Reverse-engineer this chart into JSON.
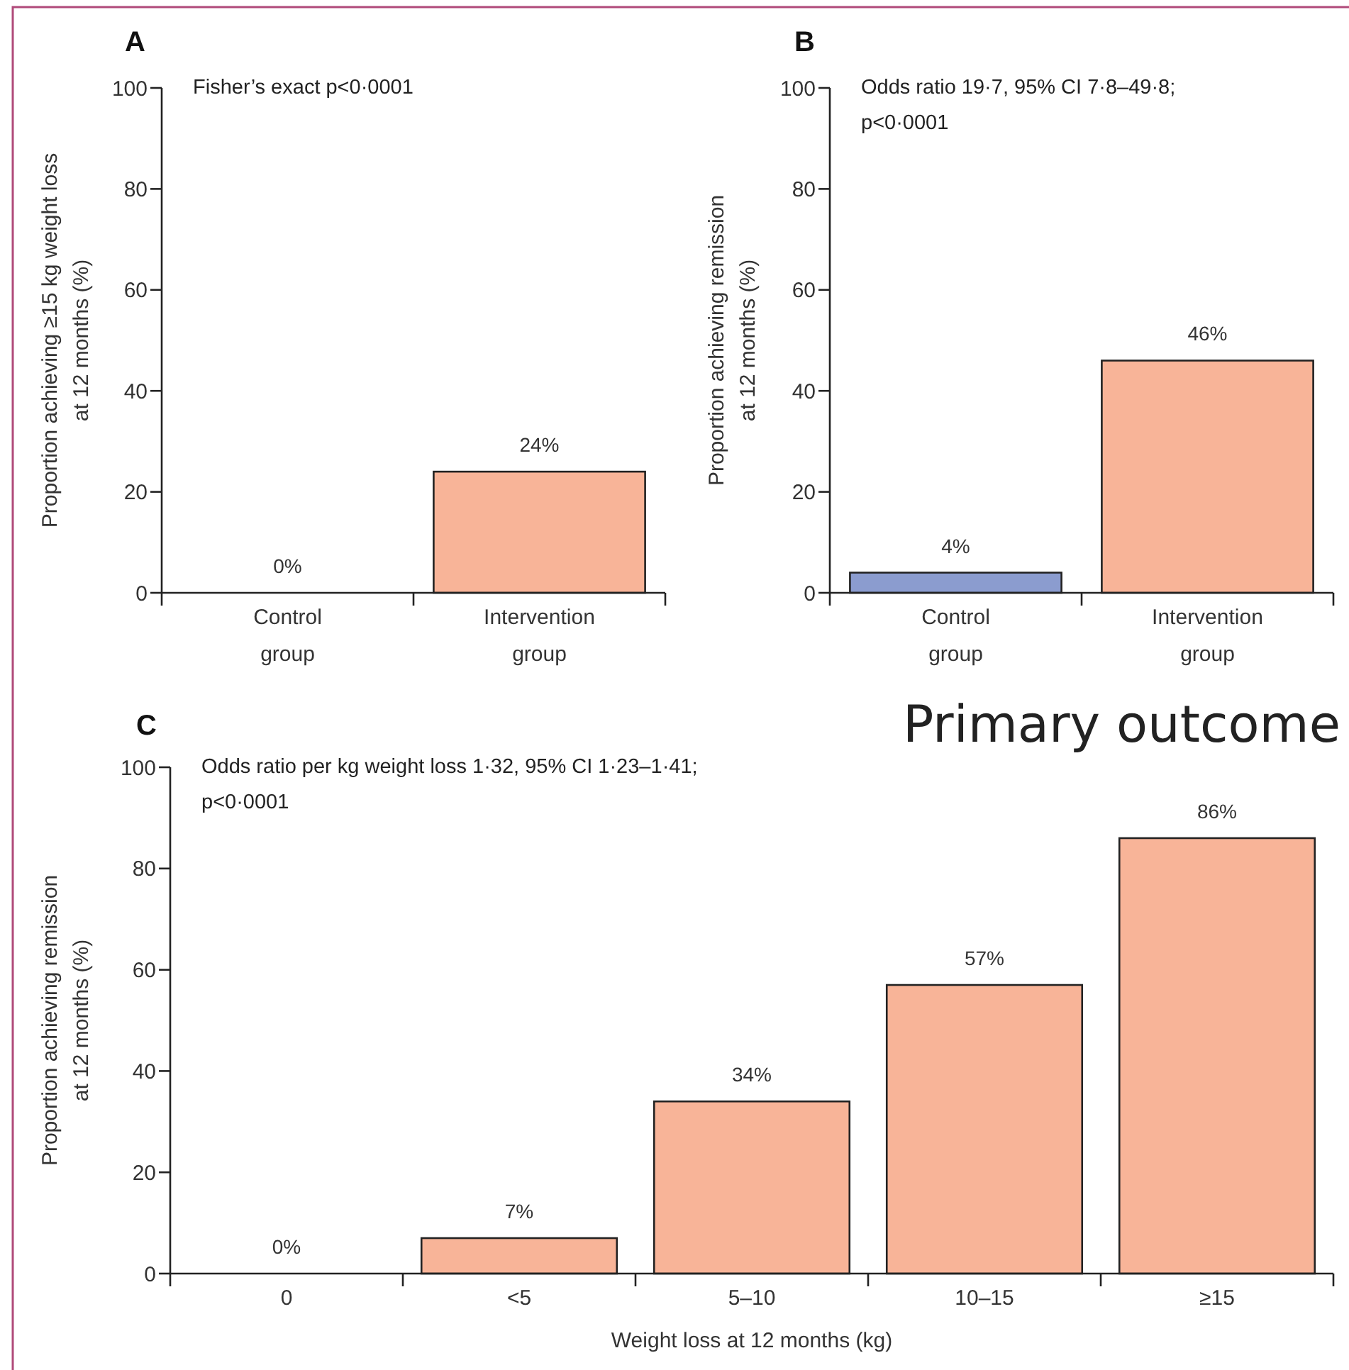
{
  "chart_data": [
    {
      "type": "bar",
      "title": "A",
      "annotations": [
        "Fisher’s exact p<0·0001"
      ],
      "ylabel": "Proportion achieving ≥15 kg weight loss\nat 12 months (%)",
      "categories": [
        "Control\ngroup",
        "Intervention\ngroup"
      ],
      "values": [
        0,
        24
      ],
      "colors": [
        "#f8b498",
        "#f8b498"
      ],
      "value_labels": [
        "0%",
        "24%"
      ],
      "ylim": [
        0,
        100
      ],
      "yticks": [
        0,
        20,
        40,
        60,
        80,
        100
      ],
      "grid": false
    },
    {
      "type": "bar",
      "title": "B",
      "annotations": [
        "Odds ratio 19·7, 95% CI 7·8–49·8;\np<0·0001"
      ],
      "ylabel": "Proportion achieving remission\nat 12 months (%)",
      "categories": [
        "Control\ngroup",
        "Intervention\ngroup"
      ],
      "values": [
        4,
        46
      ],
      "colors": [
        "#8b9ccf",
        "#f8b498"
      ],
      "value_labels": [
        "4%",
        "46%"
      ],
      "ylim": [
        0,
        100
      ],
      "yticks": [
        0,
        20,
        40,
        60,
        80,
        100
      ],
      "grid": false
    },
    {
      "type": "bar",
      "title": "C",
      "annotations": [
        "Odds ratio per kg weight loss 1·32, 95% CI 1·23–1·41;\np<0·0001",
        "Primary outcome"
      ],
      "ylabel": "Proportion achieving remission\nat 12 months (%)",
      "xlabel": "Weight loss at 12 months (kg)",
      "categories": [
        "0",
        "<5",
        "5–10",
        "10–15",
        "≥15"
      ],
      "values": [
        0,
        7,
        34,
        57,
        86
      ],
      "colors": [
        "#f8b498",
        "#f8b498",
        "#f8b498",
        "#f8b498",
        "#f8b498"
      ],
      "value_labels": [
        "0%",
        "7%",
        "34%",
        "57%",
        "86%"
      ],
      "ylim": [
        0,
        100
      ],
      "yticks": [
        0,
        20,
        40,
        60,
        80,
        100
      ],
      "grid": false
    }
  ]
}
